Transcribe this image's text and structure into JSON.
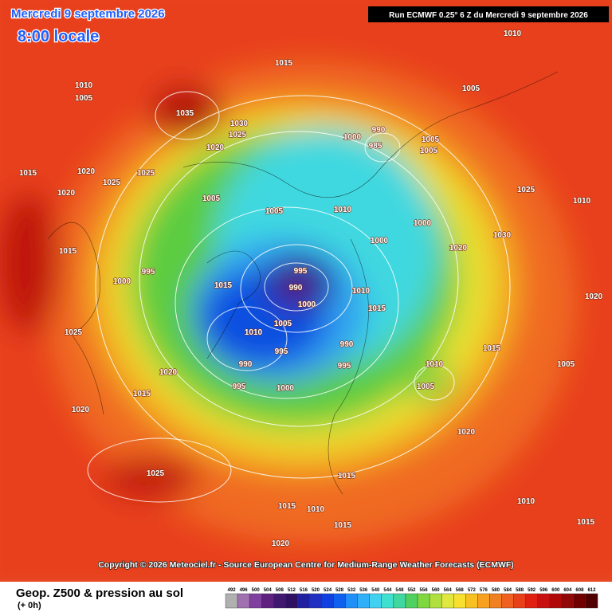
{
  "header": {
    "date": "Mercredi 9 septembre 2026",
    "time": "8:00 locale",
    "run": "Run ECMWF 0.25° 6 Z du Mercredi 9 septembre 2026"
  },
  "copyright": "Copyright © 2026 Meteociel.fr - Source European Centre for Medium-Range Weather Forecasts (ECMWF)",
  "footer": {
    "title": "Geop. Z500 & pression au sol",
    "step": "(+ 0h)"
  },
  "legend": {
    "levels": [
      "492",
      "496",
      "500",
      "504",
      "508",
      "512",
      "516",
      "520",
      "524",
      "528",
      "532",
      "536",
      "540",
      "544",
      "548",
      "552",
      "556",
      "560",
      "564",
      "568",
      "572",
      "576",
      "580",
      "584",
      "588",
      "592",
      "596",
      "600",
      "604",
      "608",
      "612"
    ],
    "colors": [
      "#b0b0b0",
      "#a070b0",
      "#8040a0",
      "#602080",
      "#401870",
      "#301060",
      "#2020a0",
      "#2030c0",
      "#1040e0",
      "#1060f0",
      "#2090f8",
      "#30b0f8",
      "#40d0f0",
      "#40e0d0",
      "#40d8a0",
      "#50d060",
      "#80d840",
      "#b0e040",
      "#e0e840",
      "#f8e030",
      "#f8c020",
      "#f8a020",
      "#f08020",
      "#f06020",
      "#e84018",
      "#e02010",
      "#c81010",
      "#b00808",
      "#900808",
      "#700000",
      "#500000"
    ]
  },
  "isobar_labels": [
    "1010",
    "1015",
    "1010",
    "1005",
    "1035",
    "1030",
    "1025",
    "1020",
    "990",
    "985",
    "1000",
    "1005",
    "1005",
    "1005",
    "1015",
    "1020",
    "1025",
    "1020",
    "1025",
    "1005",
    "1005",
    "1010",
    "1000",
    "1025",
    "1010",
    "1000",
    "1020",
    "1030",
    "1015",
    "995",
    "1000",
    "1015",
    "995",
    "990",
    "1000",
    "1010",
    "1015",
    "1025",
    "1010",
    "1005",
    "995",
    "990",
    "990",
    "995",
    "995",
    "1000",
    "1010",
    "1005",
    "1015",
    "1020",
    "1020",
    "1025",
    "1020",
    "1015",
    "1015",
    "1010",
    "1015",
    "1020",
    "1010",
    "1015",
    "1005",
    "1020",
    "1015"
  ]
}
